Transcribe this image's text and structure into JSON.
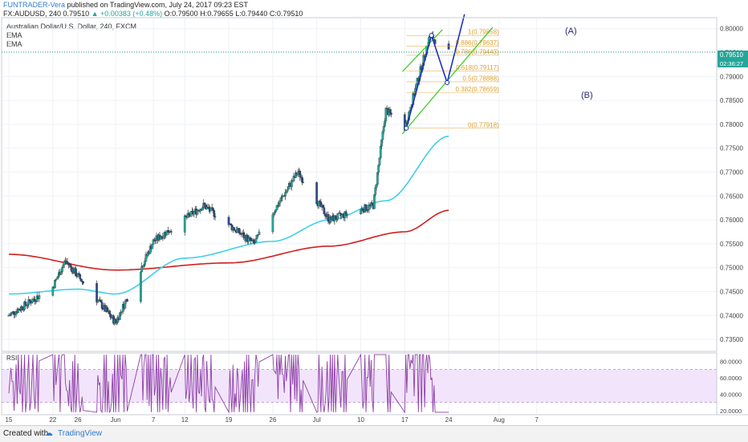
{
  "header": {
    "author": "FUNTRADER-Vera",
    "publish_text": "published on TradingView.com, July 24, 2017 09:23 EST",
    "symbol": "FX:AUDUSD, 240",
    "last": "0.79510",
    "change": "+0.00383 (+0.48%)",
    "open": "O:0.79500",
    "high": "H:0.79655",
    "low": "L:0.79440",
    "close": "C:0.79510"
  },
  "legend": {
    "title": "Australian Dollar/U.S. Dollar, 240, FXCM",
    "ema1": "EMA",
    "ema2": "EMA"
  },
  "price_tag": {
    "value": "0.79510",
    "countdown": "02:36:27"
  },
  "pattern_labels": {
    "a": "(A)",
    "b": "(B)"
  },
  "footer": {
    "created_with": "Created with",
    "brand": "TradingView"
  },
  "colors": {
    "candle_up": "#26a69a",
    "candle_down": "#2e4a8a",
    "ema_fast": "#3fd0e6",
    "ema_slow": "#d21f1f",
    "rsi_line": "#8e3fa8",
    "rsi_band": "#f2e4fa",
    "fib": "#e0a030",
    "channel": "#3fcf2a",
    "abcd": "#1c2fc2",
    "price_tag": "#26a69a"
  },
  "chart_data": [
    {
      "type": "candlestick",
      "title": "Australian Dollar/U.S. Dollar, 240, FXCM",
      "symbol": "FX:AUDUSD",
      "timeframe": "240",
      "ylim": [
        0.7325,
        0.8023
      ],
      "y_ticks": [
        "0.80000",
        "0.79500",
        "0.79000",
        "0.78500",
        "0.78000",
        "0.77500",
        "0.77000",
        "0.76500",
        "0.76000",
        "0.75500",
        "0.75000",
        "0.74500",
        "0.74000",
        "0.73500"
      ],
      "x_ticks": [
        "15",
        "22",
        "26",
        "Jun",
        "7",
        "12",
        "19",
        "26",
        "Jul",
        "10",
        "17",
        "24",
        "Aug",
        "7"
      ],
      "key_points": [
        {
          "date": "May 15",
          "price": 0.74
        },
        {
          "date": "May 22",
          "price": 0.746
        },
        {
          "date": "May 24",
          "price": 0.7515
        },
        {
          "date": "Jun 1",
          "price": 0.7385
        },
        {
          "date": "Jun 7",
          "price": 0.7555
        },
        {
          "date": "Jun 15",
          "price": 0.763
        },
        {
          "date": "Jun 23",
          "price": 0.755
        },
        {
          "date": "Jun 30",
          "price": 0.77
        },
        {
          "date": "Jul 5",
          "price": 0.76
        },
        {
          "date": "Jul 12",
          "price": 0.763
        },
        {
          "date": "Jul 14",
          "price": 0.783
        },
        {
          "date": "Jul 17",
          "price": 0.7792
        },
        {
          "date": "Jul 21",
          "price": 0.7986
        },
        {
          "date": "Jul 24",
          "price": 0.7951
        }
      ],
      "ema_fast": {
        "name": "EMA",
        "values": [
          {
            "date": "May 15",
            "value": 0.7445
          },
          {
            "date": "May 26",
            "value": 0.7455
          },
          {
            "date": "Jun 1",
            "value": 0.7445
          },
          {
            "date": "Jun 12",
            "value": 0.752
          },
          {
            "date": "Jun 26",
            "value": 0.7555
          },
          {
            "date": "Jul 5",
            "value": 0.76
          },
          {
            "date": "Jul 14",
            "value": 0.764
          },
          {
            "date": "Jul 24",
            "value": 0.7775
          }
        ]
      },
      "ema_slow": {
        "name": "EMA",
        "values": [
          {
            "date": "May 15",
            "value": 0.7528
          },
          {
            "date": "Jun 1",
            "value": 0.7495
          },
          {
            "date": "Jun 19",
            "value": 0.751
          },
          {
            "date": "Jul 5",
            "value": 0.7545
          },
          {
            "date": "Jul 17",
            "value": 0.7575
          },
          {
            "date": "Jul 24",
            "value": 0.762
          }
        ]
      },
      "fibonacci": [
        {
          "ratio": "1",
          "label": "1(0.79858)",
          "price": 0.79858
        },
        {
          "ratio": "0.886",
          "label": "0.886(0.79637)",
          "price": 0.79637
        },
        {
          "ratio": "0.786",
          "label": "0.786(0.79443)",
          "price": 0.79443
        },
        {
          "ratio": "0.618",
          "label": "0.618(0.79117)",
          "price": 0.79117
        },
        {
          "ratio": "0.5",
          "label": "0.5(0.78888)",
          "price": 0.78888
        },
        {
          "ratio": "0.382",
          "label": "0.382(0.78659)",
          "price": 0.78659
        },
        {
          "ratio": "0",
          "label": "0(0.77918)",
          "price": 0.77918
        }
      ],
      "annotations": [
        "(A)",
        "(B)"
      ]
    },
    {
      "type": "line",
      "title": "RSI",
      "ylim": [
        15,
        90
      ],
      "y_ticks": [
        "80.0000",
        "60.0000",
        "40.0000",
        "20.0000"
      ],
      "band": [
        30,
        70
      ],
      "range_observed": [
        18,
        88
      ]
    }
  ]
}
